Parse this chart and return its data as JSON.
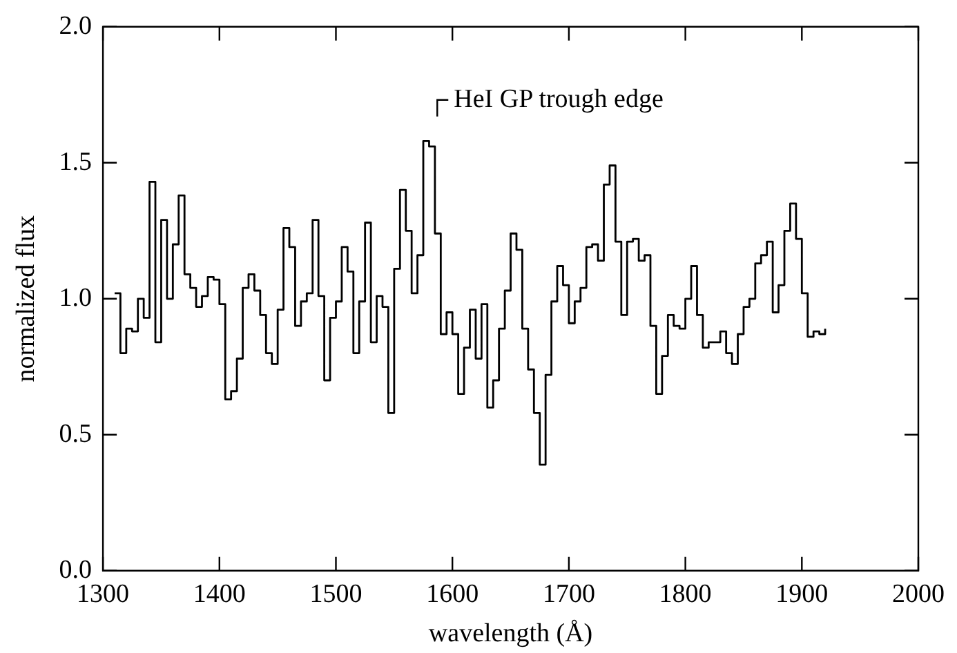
{
  "chart_data": {
    "type": "step",
    "xlabel": "wavelength (Å)",
    "ylabel": "normalized flux",
    "x": [
      1310,
      1315,
      1320,
      1325,
      1330,
      1335,
      1340,
      1345,
      1350,
      1355,
      1360,
      1365,
      1370,
      1375,
      1380,
      1385,
      1390,
      1395,
      1400,
      1405,
      1410,
      1415,
      1420,
      1425,
      1430,
      1435,
      1440,
      1445,
      1450,
      1455,
      1460,
      1465,
      1470,
      1475,
      1480,
      1485,
      1490,
      1495,
      1500,
      1505,
      1510,
      1515,
      1520,
      1525,
      1530,
      1535,
      1540,
      1545,
      1550,
      1555,
      1560,
      1565,
      1570,
      1575,
      1580,
      1585,
      1590,
      1595,
      1600,
      1605,
      1610,
      1615,
      1620,
      1625,
      1630,
      1635,
      1640,
      1645,
      1650,
      1655,
      1660,
      1665,
      1670,
      1675,
      1680,
      1685,
      1690,
      1695,
      1700,
      1705,
      1710,
      1715,
      1720,
      1725,
      1730,
      1735,
      1740,
      1745,
      1750,
      1755,
      1760,
      1765,
      1770,
      1775,
      1780,
      1785,
      1790,
      1795,
      1800,
      1805,
      1810,
      1815,
      1820,
      1825,
      1830,
      1835,
      1840,
      1845,
      1850,
      1855,
      1860,
      1865,
      1870,
      1875,
      1880,
      1885,
      1890,
      1895,
      1900,
      1905,
      1910,
      1915,
      1920
    ],
    "values": [
      1.02,
      0.8,
      0.89,
      0.88,
      1.0,
      0.93,
      1.43,
      0.84,
      1.29,
      1.0,
      1.2,
      1.38,
      1.09,
      1.04,
      0.97,
      1.01,
      1.08,
      1.07,
      0.98,
      0.63,
      0.66,
      0.78,
      1.04,
      1.09,
      1.03,
      0.94,
      0.8,
      0.76,
      0.96,
      1.26,
      1.19,
      0.9,
      0.99,
      1.02,
      1.29,
      1.01,
      0.7,
      0.93,
      0.99,
      1.19,
      1.1,
      0.8,
      0.99,
      1.28,
      0.84,
      1.01,
      0.97,
      0.58,
      1.11,
      1.4,
      1.25,
      1.02,
      1.16,
      1.58,
      1.56,
      1.24,
      0.87,
      0.95,
      0.87,
      0.65,
      0.82,
      0.96,
      0.78,
      0.98,
      0.6,
      0.7,
      0.89,
      1.03,
      1.24,
      1.18,
      0.89,
      0.74,
      0.58,
      0.39,
      0.72,
      0.99,
      1.12,
      1.05,
      0.91,
      0.99,
      1.04,
      1.19,
      1.2,
      1.14,
      1.42,
      1.49,
      1.21,
      0.94,
      1.21,
      1.22,
      1.14,
      1.16,
      0.9,
      0.65,
      0.79,
      0.94,
      0.9,
      0.89,
      1.0,
      1.12,
      0.94,
      0.82,
      0.84,
      0.84,
      0.88,
      0.8,
      0.76,
      0.87,
      0.97,
      1.0,
      1.13,
      1.16,
      1.21,
      0.95,
      1.05,
      1.25,
      1.35,
      1.22,
      1.02,
      0.86,
      0.88,
      0.87,
      0.89
    ],
    "color": "#000000",
    "xlim": [
      1300,
      2000
    ],
    "xticks": [
      1300,
      1400,
      1500,
      1600,
      1700,
      1800,
      1900,
      2000
    ],
    "ylim": [
      0,
      2
    ],
    "yticks": [
      {
        "value": 0,
        "label": "0.0"
      },
      {
        "value": 0.5,
        "label": "0.5"
      },
      {
        "value": 1,
        "label": "1.0"
      },
      {
        "value": 1.5,
        "label": "1.5"
      },
      {
        "value": 2,
        "label": "2.0"
      }
    ],
    "grid": false,
    "legend": false,
    "marker": "none",
    "line_style": "solid",
    "annotations": [
      "HeI GP trough edge"
    ]
  }
}
